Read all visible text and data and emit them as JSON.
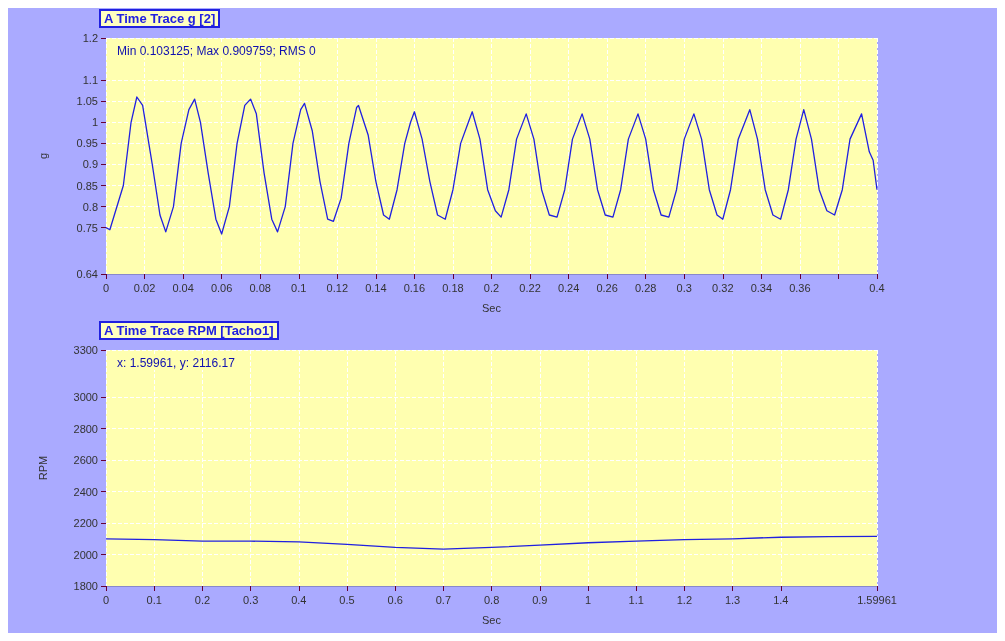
{
  "chart_data": [
    {
      "type": "line",
      "title": "A Time Trace g [2]",
      "xlabel": "Sec",
      "ylabel": "g",
      "color": "#2020e0",
      "grid": true,
      "annotations": [
        "Min 0.103125; Max 0.909759; RMS 0"
      ],
      "xlim": [
        0,
        0.4
      ],
      "xticks": [
        0,
        0.02,
        0.04,
        0.06,
        0.08,
        0.1,
        0.12,
        0.14,
        0.16,
        0.18,
        0.2,
        0.22,
        0.24,
        0.26,
        0.28,
        0.3,
        0.32,
        0.34,
        0.36,
        {
          "value": 0.38,
          "label": null
        },
        0.4
      ],
      "ylim": [
        0.64,
        1.2
      ],
      "yticks": [
        0.64,
        0.75,
        0.8,
        0.85,
        0.9,
        0.95,
        1,
        1.05,
        1.1,
        1.2
      ],
      "x": [
        0,
        0.002,
        0.009,
        0.013,
        0.016,
        0.019,
        0.024,
        0.028,
        0.031,
        0.035,
        0.039,
        0.043,
        0.046,
        0.049,
        0.053,
        0.057,
        0.06,
        0.064,
        0.068,
        0.072,
        0.075,
        0.078,
        0.082,
        0.086,
        0.089,
        0.093,
        0.097,
        0.101,
        0.103,
        0.107,
        0.111,
        0.115,
        0.118,
        0.122,
        0.126,
        0.13,
        0.131,
        0.136,
        0.14,
        0.144,
        0.147,
        0.151,
        0.155,
        0.158,
        0.16,
        0.164,
        0.168,
        0.172,
        0.176,
        0.18,
        0.184,
        0.188,
        0.19,
        0.194,
        0.198,
        0.202,
        0.205,
        0.209,
        0.213,
        0.218,
        0.222,
        0.226,
        0.23,
        0.234,
        0.238,
        0.242,
        0.247,
        0.251,
        0.255,
        0.259,
        0.263,
        0.267,
        0.271,
        0.276,
        0.28,
        0.284,
        0.288,
        0.292,
        0.296,
        0.3,
        0.305,
        0.309,
        0.313,
        0.317,
        0.32,
        0.324,
        0.328,
        0.334,
        0.338,
        0.342,
        0.346,
        0.35,
        0.354,
        0.358,
        0.362,
        0.366,
        0.37,
        0.374,
        0.378,
        0.382,
        0.386,
        0.392,
        0.396,
        0.398,
        0.4
      ],
      "values": [
        0.75,
        0.745,
        0.85,
        1.0,
        1.06,
        1.04,
        0.9,
        0.78,
        0.74,
        0.8,
        0.95,
        1.03,
        1.055,
        1.0,
        0.88,
        0.77,
        0.735,
        0.8,
        0.95,
        1.04,
        1.055,
        1.02,
        0.88,
        0.77,
        0.74,
        0.8,
        0.95,
        1.03,
        1.045,
        0.98,
        0.86,
        0.77,
        0.765,
        0.82,
        0.95,
        1.035,
        1.04,
        0.97,
        0.86,
        0.78,
        0.77,
        0.84,
        0.95,
        1.0,
        1.025,
        0.96,
        0.86,
        0.78,
        0.77,
        0.84,
        0.95,
        1.0,
        1.025,
        0.96,
        0.84,
        0.79,
        0.775,
        0.84,
        0.96,
        1.02,
        0.96,
        0.84,
        0.78,
        0.775,
        0.84,
        0.96,
        1.02,
        0.96,
        0.84,
        0.78,
        0.775,
        0.84,
        0.96,
        1.02,
        0.96,
        0.84,
        0.78,
        0.775,
        0.84,
        0.96,
        1.02,
        0.96,
        0.84,
        0.78,
        0.77,
        0.84,
        0.96,
        1.03,
        0.96,
        0.84,
        0.78,
        0.77,
        0.84,
        0.96,
        1.03,
        0.96,
        0.84,
        0.79,
        0.78,
        0.84,
        0.96,
        1.02,
        0.93,
        0.91,
        0.84
      ]
    },
    {
      "type": "line",
      "title": "A Time Trace RPM [Tacho1]",
      "xlabel": "Sec",
      "ylabel": "RPM",
      "color": "#2020e0",
      "grid": true,
      "annotations": [
        "x: 1.59961, y: 2116.17"
      ],
      "xlim": [
        0,
        1.59961
      ],
      "xticks": [
        0,
        0.1,
        0.2,
        0.3,
        0.4,
        0.5,
        0.6,
        0.7,
        0.8,
        0.9,
        1,
        1.1,
        1.2,
        1.3,
        1.4,
        1.59961
      ],
      "ylim": [
        1800,
        3300
      ],
      "yticks": [
        1800,
        2000,
        2200,
        2400,
        2600,
        2800,
        3000,
        3300
      ],
      "x": [
        0,
        0.1,
        0.2,
        0.3,
        0.4,
        0.5,
        0.6,
        0.7,
        0.8,
        0.9,
        1,
        1.1,
        1.2,
        1.3,
        1.4,
        1.5,
        1.59961
      ],
      "values": [
        2100,
        2095,
        2085,
        2085,
        2080,
        2065,
        2045,
        2035,
        2045,
        2060,
        2075,
        2085,
        2095,
        2100,
        2110,
        2114,
        2116
      ]
    }
  ]
}
